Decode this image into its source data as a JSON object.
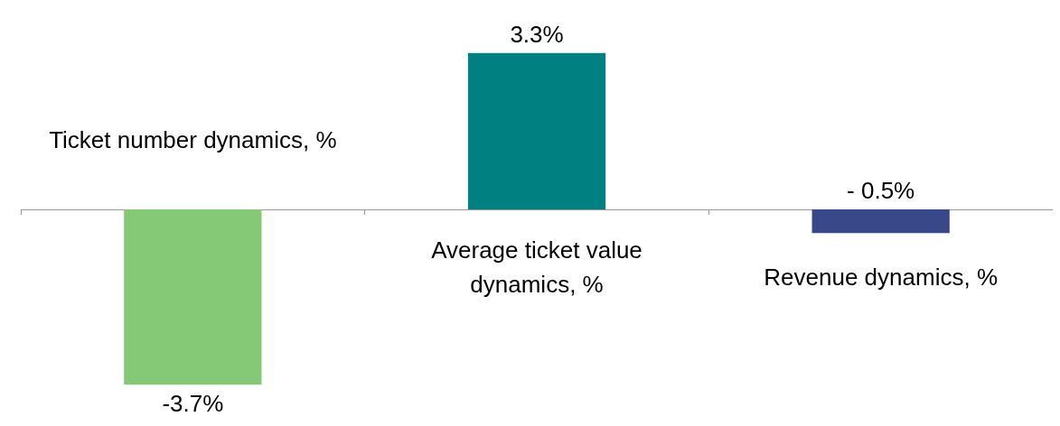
{
  "chart_data": {
    "type": "bar",
    "categories": [
      "Ticket number dynamics, %",
      "Average ticket value\ndynamics, %",
      "Revenue dynamics, %"
    ],
    "values": [
      -3.7,
      3.3,
      -0.5
    ],
    "colors": [
      "#85c977",
      "#008080",
      "#384888"
    ],
    "value_labels": [
      "-3.7%",
      "3.3%",
      "- 0.5%"
    ],
    "tick_labels": "x",
    "grid": false
  }
}
